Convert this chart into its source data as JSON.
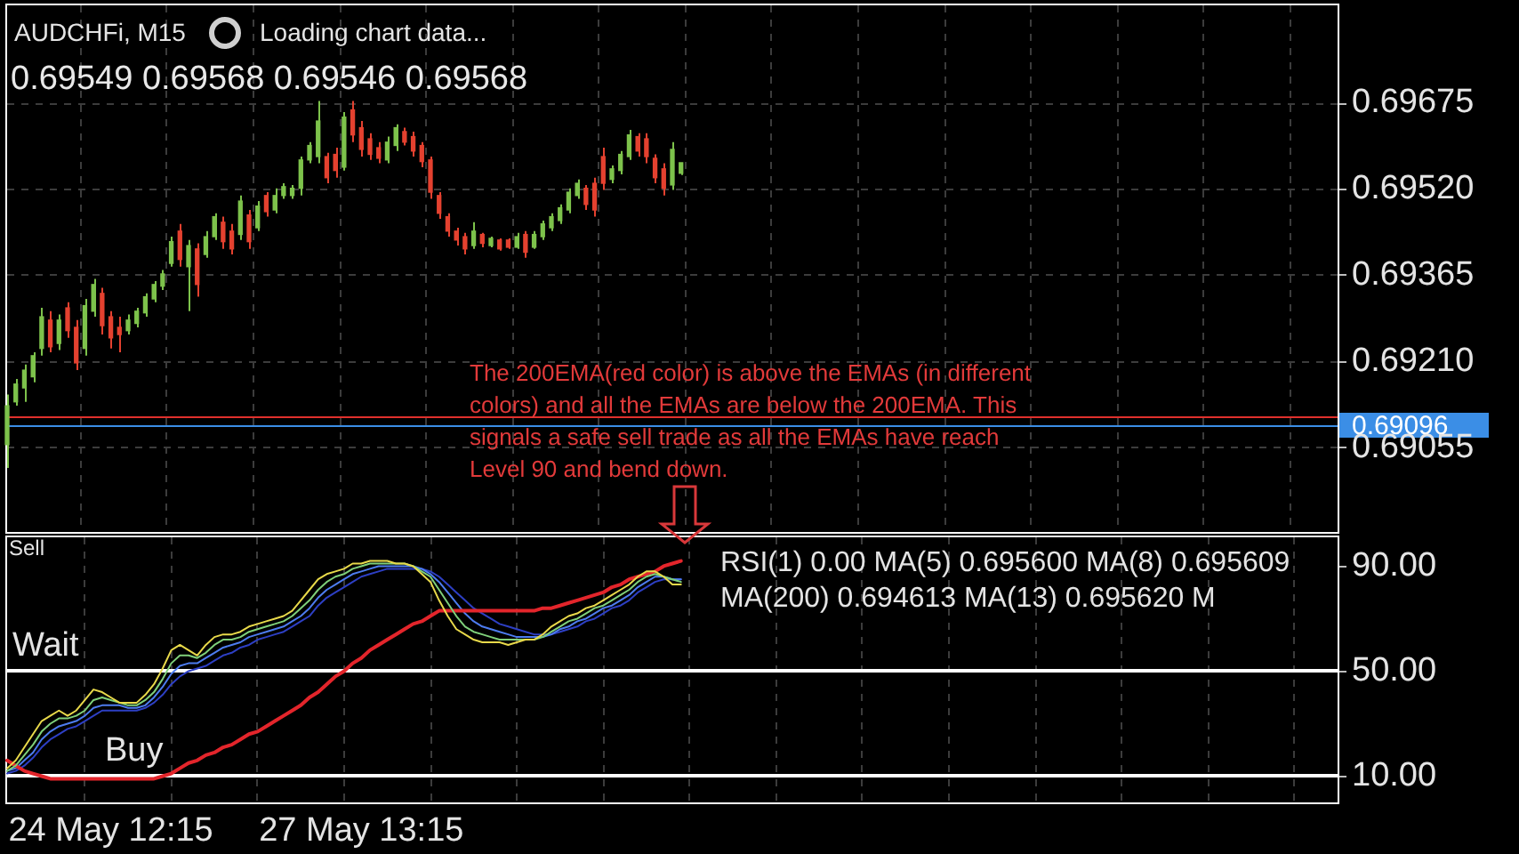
{
  "chart_data": [
    {
      "type": "candlestick",
      "title": "AUDCHFi, M15",
      "subtitle": "Loading chart data...",
      "annotations": [
        "0.69549 0.69568 0.69546 0.69568",
        "The 200EMA(red color) is above the EMAs (in different colors) and all the EMAs are below the 200EMA. This signals a safe sell trade as all the EMAs have reach Level 90 and bend down."
      ],
      "categories": [
        null,
        null,
        null,
        null,
        null,
        null,
        null,
        null,
        null,
        null,
        null,
        null,
        null,
        null,
        null,
        null,
        null,
        null,
        null,
        null,
        null,
        null,
        null,
        null,
        null,
        null,
        null,
        null,
        null,
        null,
        null,
        null,
        null,
        null,
        null,
        null,
        null,
        null,
        null,
        null,
        null,
        null,
        null,
        null,
        null,
        null,
        null,
        null,
        null,
        null,
        null,
        null,
        null,
        null,
        null,
        null,
        null,
        null,
        null,
        null,
        null,
        null,
        null,
        null,
        null,
        null,
        null,
        null,
        null,
        null,
        null,
        null,
        null,
        null,
        null,
        null,
        null,
        null,
        null,
        null,
        null,
        null,
        null,
        null,
        null,
        null,
        null,
        null,
        null,
        null,
        null,
        null,
        null,
        null,
        null,
        null,
        null,
        null,
        null,
        null,
        null,
        null,
        null,
        null,
        null,
        null,
        null,
        null,
        null,
        null,
        null,
        null,
        null,
        null,
        null,
        null,
        null,
        null,
        null,
        null,
        null,
        null,
        null,
        null,
        null,
        null,
        null,
        null,
        null,
        null,
        null,
        null,
        null,
        null,
        null,
        null,
        null,
        null,
        null,
        null,
        null,
        null,
        null,
        null,
        null,
        null,
        null,
        null,
        null,
        null,
        null,
        null,
        null,
        null,
        null
      ],
      "ohlc": [
        [
          0.69061,
          0.69151,
          0.69019,
          0.69131
        ],
        [
          0.69138,
          0.69179,
          0.69131,
          0.6917
        ],
        [
          0.69163,
          0.69205,
          0.69138,
          0.69195
        ],
        [
          0.69183,
          0.69227,
          0.69173,
          0.69221
        ],
        [
          0.69234,
          0.69307,
          0.69221,
          0.69291
        ],
        [
          0.69285,
          0.69301,
          0.69227,
          0.69237
        ],
        [
          0.69243,
          0.69295,
          0.69231,
          0.69285
        ],
        [
          0.69307,
          0.69317,
          0.69253,
          0.69266
        ],
        [
          0.69272,
          0.69285,
          0.69195,
          0.69208
        ],
        [
          0.69234,
          0.69323,
          0.69221,
          0.69311
        ],
        [
          0.69301,
          0.69359,
          0.69291,
          0.69349
        ],
        [
          0.69333,
          0.69343,
          0.69259,
          0.69275
        ],
        [
          0.69291,
          0.69301,
          0.69234,
          0.69253
        ],
        [
          0.69272,
          0.69291,
          0.69227,
          0.69259
        ],
        [
          0.69266,
          0.69295,
          0.69259,
          0.69285
        ],
        [
          0.69279,
          0.69307,
          0.69272,
          0.69301
        ],
        [
          0.69298,
          0.69333,
          0.69291,
          0.69327
        ],
        [
          0.69323,
          0.69355,
          0.69317,
          0.69349
        ],
        [
          0.69346,
          0.69375,
          0.69339,
          0.69368
        ],
        [
          0.69387,
          0.69435,
          0.69381,
          0.69426
        ],
        [
          0.69445,
          0.69458,
          0.69381,
          0.69394
        ],
        [
          0.69381,
          0.69429,
          0.69301,
          0.69419
        ],
        [
          0.69413,
          0.69423,
          0.69327,
          0.69349
        ],
        [
          0.69403,
          0.69445,
          0.69397,
          0.69435
        ],
        [
          0.69435,
          0.69477,
          0.69429,
          0.69471
        ],
        [
          0.69461,
          0.69471,
          0.69413,
          0.69426
        ],
        [
          0.69445,
          0.69458,
          0.69403,
          0.69413
        ],
        [
          0.69439,
          0.69509,
          0.69429,
          0.69499
        ],
        [
          0.69474,
          0.69483,
          0.69413,
          0.69426
        ],
        [
          0.69451,
          0.69499,
          0.69445,
          0.6949
        ],
        [
          0.69509,
          0.69515,
          0.69471,
          0.6948
        ],
        [
          0.69483,
          0.69522,
          0.69477,
          0.69509
        ],
        [
          0.69509,
          0.69531,
          0.69503,
          0.69525
        ],
        [
          0.69509,
          0.69528,
          0.69503,
          0.69522
        ],
        [
          0.69522,
          0.69579,
          0.69509,
          0.69573
        ],
        [
          0.69573,
          0.69605,
          0.69567,
          0.69599
        ],
        [
          0.69579,
          0.69679,
          0.69567,
          0.69643
        ],
        [
          0.69579,
          0.69586,
          0.69531,
          0.69541
        ],
        [
          0.69583,
          0.69595,
          0.69541,
          0.69554
        ],
        [
          0.6956,
          0.69659,
          0.69554,
          0.6965
        ],
        [
          0.69663,
          0.69679,
          0.69605,
          0.69618
        ],
        [
          0.69631,
          0.69643,
          0.69579,
          0.69592
        ],
        [
          0.69611,
          0.69621,
          0.69573,
          0.69583
        ],
        [
          0.69595,
          0.69605,
          0.69567,
          0.69576
        ],
        [
          0.69573,
          0.69615,
          0.69567,
          0.69605
        ],
        [
          0.69599,
          0.69637,
          0.69589,
          0.69631
        ],
        [
          0.69624,
          0.69631,
          0.69599,
          0.69605
        ],
        [
          0.69615,
          0.69624,
          0.69579,
          0.69589
        ],
        [
          0.69599,
          0.69605,
          0.6956,
          0.6957
        ],
        [
          0.69573,
          0.69579,
          0.69503,
          0.69515
        ],
        [
          0.69509,
          0.69515,
          0.69467,
          0.69477
        ],
        [
          0.69471,
          0.69477,
          0.69435,
          0.69445
        ],
        [
          0.69445,
          0.69451,
          0.69419,
          0.69429
        ],
        [
          0.69435,
          0.69442,
          0.69403,
          0.69413
        ],
        [
          0.69419,
          0.69461,
          0.69413,
          0.69445
        ],
        [
          0.69439,
          0.69442,
          0.69416,
          0.69423
        ],
        [
          0.69419,
          0.69435,
          0.69416,
          0.69432
        ],
        [
          0.69429,
          0.69432,
          0.6941,
          0.69413
        ],
        [
          0.69429,
          0.69432,
          0.69413,
          0.69416
        ],
        [
          0.69416,
          0.69442,
          0.69413,
          0.69435
        ],
        [
          0.69439,
          0.69445,
          0.69397,
          0.69407
        ],
        [
          0.69416,
          0.69445,
          0.69413,
          0.69439
        ],
        [
          0.69435,
          0.69464,
          0.69429,
          0.69458
        ],
        [
          0.69451,
          0.69477,
          0.69445,
          0.69471
        ],
        [
          0.69464,
          0.69493,
          0.69458,
          0.69487
        ],
        [
          0.69483,
          0.69522,
          0.69477,
          0.69515
        ],
        [
          0.69509,
          0.69538,
          0.69503,
          0.69531
        ],
        [
          0.69522,
          0.69528,
          0.69483,
          0.69493
        ],
        [
          0.69531,
          0.69541,
          0.69471,
          0.69483
        ],
        [
          0.69579,
          0.69595,
          0.69519,
          0.69531
        ],
        [
          0.69538,
          0.69563,
          0.69531,
          0.69557
        ],
        [
          0.69554,
          0.69589,
          0.69547,
          0.69583
        ],
        [
          0.69579,
          0.69627,
          0.69573,
          0.69618
        ],
        [
          0.69615,
          0.69621,
          0.69579,
          0.69589
        ],
        [
          0.69611,
          0.69621,
          0.69567,
          0.69579
        ],
        [
          0.69576,
          0.69583,
          0.69531,
          0.69541
        ],
        [
          0.69557,
          0.69567,
          0.69509,
          0.69522
        ],
        [
          0.69528,
          0.69605,
          0.69519,
          0.69592
        ],
        [
          0.69549,
          0.69568,
          0.69546,
          0.69568
        ],
        null,
        null,
        null,
        null,
        null,
        null,
        null,
        null,
        null,
        null,
        null,
        null,
        null,
        null,
        null,
        null,
        null,
        null,
        null,
        null,
        null,
        null,
        null,
        null,
        null,
        null,
        null,
        null,
        null,
        null,
        null,
        null,
        null,
        null,
        null,
        null,
        null,
        null,
        null,
        null,
        null,
        null,
        null,
        null,
        null,
        null,
        null,
        null,
        null,
        null,
        null,
        null,
        null,
        null,
        null,
        null,
        null,
        null,
        null,
        null,
        null,
        null,
        null,
        null,
        null,
        null,
        null,
        null,
        null,
        null,
        null,
        null,
        null,
        null,
        null,
        null
      ],
      "colors": [
        "#7dc24b",
        "#7dc24b",
        "#7dc24b",
        "#7dc24b",
        "#7dc24b",
        "#e4412f",
        "#7dc24b",
        "#e4412f",
        "#e4412f",
        "#7dc24b",
        "#7dc24b",
        "#e4412f",
        "#e4412f",
        "#e4412f",
        "#7dc24b",
        "#7dc24b",
        "#7dc24b",
        "#7dc24b",
        "#7dc24b",
        "#7dc24b",
        "#e4412f",
        "#7dc24b",
        "#e4412f",
        "#7dc24b",
        "#7dc24b",
        "#e4412f",
        "#e4412f",
        "#7dc24b",
        "#e4412f",
        "#7dc24b",
        "#e4412f",
        "#7dc24b",
        "#7dc24b",
        "#7dc24b",
        "#7dc24b",
        "#7dc24b",
        "#7dc24b",
        "#e4412f",
        "#e4412f",
        "#7dc24b",
        "#e4412f",
        "#e4412f",
        "#e4412f",
        "#e4412f",
        "#7dc24b",
        "#7dc24b",
        "#e4412f",
        "#e4412f",
        "#e4412f",
        "#e4412f",
        "#e4412f",
        "#e4412f",
        "#e4412f",
        "#e4412f",
        "#7dc24b",
        "#e4412f",
        "#7dc24b",
        "#e4412f",
        "#e4412f",
        "#7dc24b",
        "#e4412f",
        "#7dc24b",
        "#7dc24b",
        "#7dc24b",
        "#7dc24b",
        "#7dc24b",
        "#7dc24b",
        "#e4412f",
        "#e4412f",
        "#e4412f",
        "#7dc24b",
        "#7dc24b",
        "#7dc24b",
        "#e4412f",
        "#e4412f",
        "#e4412f",
        "#e4412f",
        "#7dc24b",
        "#7dc24b",
        null,
        null,
        null,
        null,
        null,
        null,
        null,
        null,
        null,
        null,
        null,
        null,
        null,
        null,
        null,
        null,
        null,
        null,
        null,
        null,
        null,
        null,
        null,
        null,
        null,
        null,
        null,
        null,
        null,
        null,
        null,
        null,
        null,
        null,
        null,
        null,
        null,
        null,
        null,
        null,
        null,
        null,
        null,
        null,
        null,
        null,
        null,
        null,
        null,
        null,
        null,
        null,
        null,
        null,
        null,
        null,
        null,
        null,
        null,
        null,
        null,
        null,
        null,
        null,
        null,
        null,
        null,
        null,
        null,
        null,
        null,
        null,
        null,
        null,
        null,
        null
      ],
      "ylim": [
        0.68904,
        0.69851
      ],
      "yticks": [
        0.69055,
        {
          "value": 0.6921,
          "label": "0.69210"
        },
        0.69365,
        {
          "value": 0.6952,
          "label": "0.69520"
        },
        0.69675
      ],
      "ref_lines": [
        {
          "axis": "y",
          "value": 0.69111,
          "color": "#e0302c"
        },
        {
          "axis": "y",
          "value": 0.69096,
          "label": "0.69096",
          "color": "#3b8ee6"
        }
      ],
      "grid": true,
      "tick_labels": "y"
    },
    {
      "type": "line",
      "title": "RSI(1) 0.00 MA(5) 0.695600 MA(8) 0.695609 MA(200) 0.694613 MA(13) 0.695620 M",
      "annotations": [
        "Sell"
      ],
      "categories": [
        null,
        null,
        null,
        null,
        null,
        null,
        null,
        null,
        null,
        null,
        null,
        null,
        "24 May 12:15",
        null,
        null,
        null,
        null,
        null,
        null,
        null,
        null,
        null,
        null,
        null,
        null,
        null,
        null,
        null,
        null,
        null,
        null,
        null,
        null,
        null,
        null,
        null,
        null,
        null,
        null,
        null,
        null,
        "27 May 13:15",
        null,
        null,
        null,
        null,
        null,
        null,
        null,
        null,
        null,
        null,
        null,
        null,
        null,
        null,
        null,
        null,
        null,
        null,
        null,
        null,
        null,
        null,
        null,
        null,
        null,
        null,
        null,
        null,
        null,
        null,
        null,
        null,
        null,
        null,
        null,
        null,
        null,
        null,
        null,
        null,
        null,
        null,
        null,
        null,
        null,
        null,
        null,
        null,
        null,
        null,
        null,
        null,
        null,
        null,
        null,
        null,
        null,
        null,
        null,
        null,
        null,
        null,
        null,
        null,
        null,
        null,
        null,
        null,
        null,
        null,
        null,
        null,
        null,
        null,
        null,
        null,
        null,
        null,
        null,
        null,
        null,
        null,
        null,
        null,
        null,
        null,
        null,
        null,
        null,
        null,
        null,
        null,
        null,
        null,
        null,
        null,
        null,
        null,
        null,
        null,
        null,
        null,
        null,
        null,
        null,
        null,
        null,
        null,
        null,
        null,
        null,
        null,
        null
      ],
      "series": [
        {
          "color": "#e8d94a",
          "values": [
            13,
            16,
            21,
            26,
            31,
            33,
            35,
            33,
            35,
            39,
            43,
            42,
            40,
            38,
            38,
            38,
            41,
            45,
            51,
            58,
            60,
            58,
            56,
            60,
            63,
            64,
            64,
            65,
            67,
            68,
            69,
            70,
            71,
            73,
            77,
            81,
            85,
            87,
            88,
            89,
            91,
            91,
            92,
            92,
            92,
            91,
            91,
            90,
            87,
            84,
            77,
            71,
            66,
            64,
            62,
            61,
            61,
            61,
            60,
            61,
            62,
            62,
            64,
            67,
            69,
            71,
            72,
            74,
            75,
            77,
            79,
            81,
            83,
            86,
            88,
            88,
            86,
            83,
            83,
            null,
            null,
            null,
            null,
            null,
            null,
            null,
            null,
            null,
            null,
            null,
            null,
            null,
            null,
            null,
            null,
            null,
            null,
            null,
            null,
            null,
            null,
            null,
            null,
            null,
            null,
            null,
            null,
            null,
            null,
            null,
            null,
            null,
            null,
            null,
            null,
            null,
            null,
            null,
            null,
            null,
            null,
            null,
            null,
            null,
            null,
            null,
            null,
            null,
            null,
            null,
            null,
            null,
            null,
            null,
            null,
            null,
            null,
            null,
            null,
            null,
            null,
            null,
            null,
            null,
            null,
            null,
            null,
            null,
            null,
            null,
            null,
            null,
            null,
            null,
            null
          ]
        },
        {
          "color": "#7fd07a",
          "values": [
            12,
            14,
            18,
            22,
            27,
            30,
            32,
            32,
            33,
            35,
            39,
            40,
            39,
            38,
            37,
            37,
            39,
            42,
            47,
            53,
            56,
            56,
            55,
            57,
            60,
            62,
            62,
            63,
            65,
            66,
            67,
            68,
            69,
            71,
            74,
            77,
            81,
            84,
            86,
            87,
            89,
            90,
            91,
            91,
            91,
            91,
            91,
            90,
            88,
            86,
            81,
            76,
            71,
            67,
            65,
            64,
            63,
            62,
            62,
            62,
            62,
            62,
            63,
            65,
            67,
            69,
            70,
            72,
            74,
            75,
            77,
            79,
            81,
            84,
            86,
            87,
            86,
            85,
            84,
            null,
            null,
            null,
            null,
            null,
            null,
            null,
            null,
            null,
            null,
            null,
            null,
            null,
            null,
            null,
            null,
            null,
            null,
            null,
            null,
            null,
            null,
            null,
            null,
            null,
            null,
            null,
            null,
            null,
            null,
            null,
            null,
            null,
            null,
            null,
            null,
            null,
            null,
            null,
            null,
            null,
            null,
            null,
            null,
            null,
            null,
            null,
            null,
            null,
            null,
            null,
            null,
            null,
            null,
            null,
            null,
            null,
            null,
            null,
            null,
            null,
            null,
            null,
            null,
            null,
            null,
            null,
            null,
            null,
            null,
            null,
            null,
            null,
            null,
            null,
            null
          ]
        },
        {
          "color": "#e3252b",
          "values": [
            16,
            14,
            12,
            11,
            10,
            9,
            9,
            9,
            9,
            9,
            9,
            9,
            9,
            9,
            9,
            9,
            9,
            9,
            10,
            11,
            13,
            15,
            16,
            18,
            19,
            21,
            22,
            24,
            26,
            27,
            29,
            31,
            33,
            35,
            37,
            40,
            42,
            45,
            48,
            50,
            53,
            55,
            58,
            60,
            62,
            64,
            66,
            68,
            69,
            71,
            73,
            73,
            73,
            73,
            73,
            73,
            73,
            73,
            73,
            73,
            73,
            73,
            74,
            74,
            75,
            76,
            77,
            78,
            79,
            80,
            82,
            83,
            85,
            86,
            87,
            88,
            90,
            91,
            92,
            null,
            null,
            null,
            null,
            null,
            null,
            null,
            null,
            null,
            null,
            null,
            null,
            null,
            null,
            null,
            null,
            null,
            null,
            null,
            null,
            null,
            null,
            null,
            null,
            null,
            null,
            null,
            null,
            null,
            null,
            null,
            null,
            null,
            null,
            null,
            null,
            null,
            null,
            null,
            null,
            null,
            null,
            null,
            null,
            null,
            null,
            null,
            null,
            null,
            null,
            null,
            null,
            null,
            null,
            null,
            null,
            null,
            null,
            null,
            null,
            null,
            null,
            null,
            null,
            null,
            null,
            null,
            null,
            null,
            null,
            null,
            null,
            null,
            null,
            null,
            null
          ]
        },
        {
          "color": "#4d7cf0",
          "values": [
            12,
            13,
            16,
            19,
            24,
            27,
            29,
            30,
            31,
            33,
            36,
            37,
            37,
            37,
            36,
            36,
            37,
            40,
            44,
            49,
            52,
            53,
            53,
            55,
            57,
            59,
            60,
            61,
            63,
            64,
            65,
            66,
            67,
            69,
            71,
            74,
            78,
            81,
            83,
            85,
            87,
            88,
            89,
            90,
            90,
            90,
            90,
            90,
            89,
            87,
            84,
            80,
            76,
            72,
            69,
            67,
            66,
            65,
            64,
            63,
            63,
            63,
            63,
            64,
            66,
            67,
            69,
            70,
            72,
            74,
            75,
            77,
            79,
            82,
            84,
            86,
            86,
            85,
            85,
            null,
            null,
            null,
            null,
            null,
            null,
            null,
            null,
            null,
            null,
            null,
            null,
            null,
            null,
            null,
            null,
            null,
            null,
            null,
            null,
            null,
            null,
            null,
            null,
            null,
            null,
            null,
            null,
            null,
            null,
            null,
            null,
            null,
            null,
            null,
            null,
            null,
            null,
            null,
            null,
            null,
            null,
            null,
            null,
            null,
            null,
            null,
            null,
            null,
            null,
            null,
            null,
            null,
            null,
            null,
            null,
            null,
            null,
            null,
            null,
            null,
            null,
            null,
            null,
            null,
            null,
            null,
            null,
            null,
            null,
            null,
            null,
            null,
            null,
            null,
            null
          ]
        },
        {
          "color": "#2d3fc4",
          "values": [
            11,
            12,
            14,
            17,
            21,
            24,
            26,
            28,
            29,
            31,
            33,
            35,
            35,
            35,
            35,
            35,
            36,
            38,
            41,
            45,
            48,
            50,
            51,
            52,
            54,
            56,
            57,
            59,
            60,
            62,
            63,
            64,
            65,
            67,
            69,
            71,
            75,
            78,
            80,
            82,
            84,
            86,
            87,
            88,
            89,
            89,
            89,
            89,
            89,
            88,
            86,
            83,
            80,
            77,
            74,
            72,
            70,
            68,
            67,
            66,
            65,
            64,
            64,
            64,
            65,
            66,
            67,
            69,
            70,
            72,
            74,
            75,
            77,
            80,
            82,
            84,
            85,
            85,
            85,
            null,
            null,
            null,
            null,
            null,
            null,
            null,
            null,
            null,
            null,
            null,
            null,
            null,
            null,
            null,
            null,
            null,
            null,
            null,
            null,
            null,
            null,
            null,
            null,
            null,
            null,
            null,
            null,
            null,
            null,
            null,
            null,
            null,
            null,
            null,
            null,
            null,
            null,
            null,
            null,
            null,
            null,
            null,
            null,
            null,
            null,
            null,
            null,
            null,
            null,
            null,
            null,
            null,
            null,
            null,
            null,
            null,
            null,
            null,
            null,
            null,
            null,
            null,
            null,
            null,
            null,
            null,
            null,
            null,
            null,
            null,
            null,
            null,
            null,
            null,
            null
          ]
        }
      ],
      "ylim": [
        0,
        101
      ],
      "yticks": [
        {
          "value": 10,
          "label": "10.00"
        },
        {
          "value": 50,
          "label": "50.00"
        },
        {
          "value": 90,
          "label": "90.00"
        }
      ],
      "ref_lines": [
        {
          "axis": "y",
          "value": 50,
          "label": "Wait",
          "color": "#ffffff"
        },
        {
          "axis": "y",
          "value": 10,
          "label": "Buy",
          "color": "#ffffff"
        }
      ],
      "grid": "x"
    }
  ]
}
